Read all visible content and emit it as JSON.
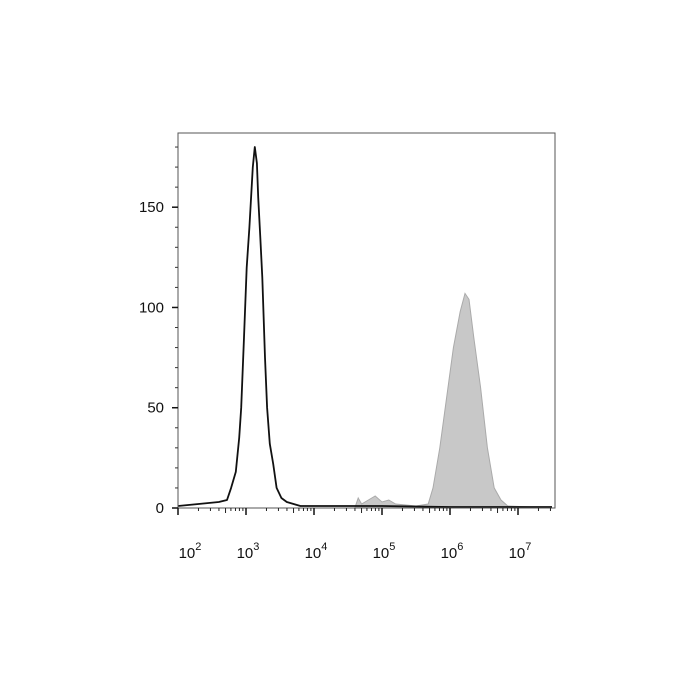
{
  "chart_data": {
    "type": "area",
    "title": "",
    "xlabel": "",
    "ylabel": "",
    "x_scale": "log",
    "xlim": [
      100,
      35000000
    ],
    "ylim": [
      0,
      187
    ],
    "grid": false,
    "x_ticks": [
      {
        "value": 100,
        "base": "10",
        "exp": "2"
      },
      {
        "value": 1000,
        "base": "10",
        "exp": "3"
      },
      {
        "value": 10000,
        "base": "10",
        "exp": "4"
      },
      {
        "value": 100000,
        "base": "10",
        "exp": "5"
      },
      {
        "value": 1000000,
        "base": "10",
        "exp": "6"
      },
      {
        "value": 10000000,
        "base": "10",
        "exp": "7"
      }
    ],
    "y_ticks": [
      {
        "value": 0,
        "label": "0"
      },
      {
        "value": 50,
        "label": "50"
      },
      {
        "value": 100,
        "label": "100"
      },
      {
        "value": 150,
        "label": "150"
      }
    ],
    "series": [
      {
        "style": "line",
        "color": "#111111",
        "x": [
          100,
          200,
          398,
          525,
          603,
          708,
          794,
          851,
          933,
          1023,
          1122,
          1259,
          1349,
          1445,
          1514,
          1622,
          1738,
          1905,
          2042,
          2239,
          2512,
          2818,
          3311,
          3981,
          6310,
          15849,
          100000,
          1000000,
          31622777
        ],
        "y": [
          1,
          2,
          3,
          4,
          10,
          18,
          35,
          50,
          85,
          120,
          140,
          170,
          180,
          172,
          155,
          135,
          115,
          75,
          50,
          32,
          22,
          10,
          5,
          3,
          1,
          1,
          1,
          0.5,
          0.5
        ]
      },
      {
        "style": "filled",
        "color": "#c8c8c8",
        "x": [
          100,
          39811,
          44668,
          50119,
          63096,
          79433,
          100000,
          125893,
          158489,
          316228,
          478630,
          562341,
          707946,
          891251,
          1122018,
          1412538,
          1659587,
          1905461,
          2238721,
          2818383,
          3548134,
          4466836,
          5623413,
          7079458,
          31622777
        ],
        "y": [
          0,
          0,
          5,
          2,
          4,
          6,
          3,
          4,
          2,
          1,
          2,
          10,
          30,
          55,
          80,
          98,
          107,
          104,
          85,
          60,
          30,
          10,
          4,
          1,
          0
        ]
      }
    ]
  }
}
